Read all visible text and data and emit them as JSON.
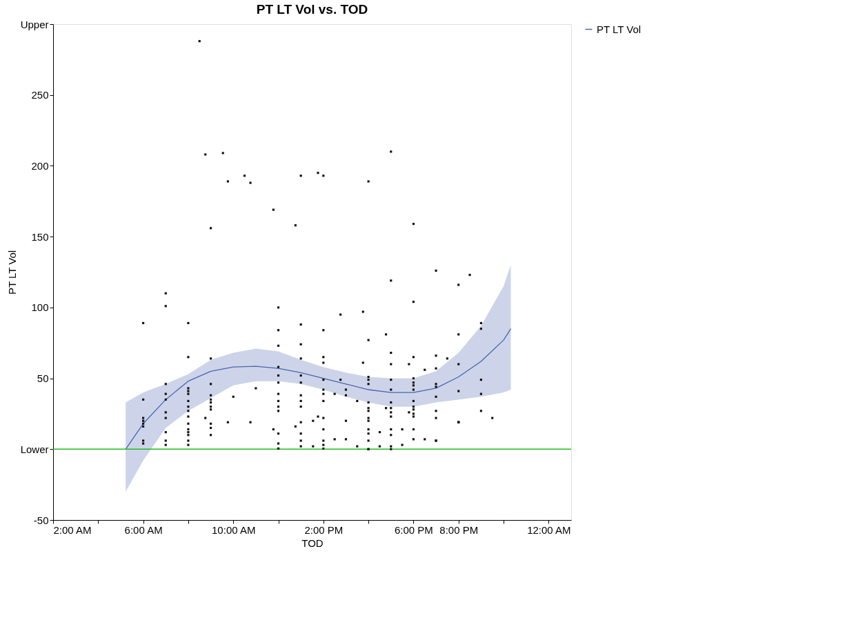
{
  "chart_data": {
    "type": "scatter",
    "title": "PT LT Vol vs. TOD",
    "xlabel": "TOD",
    "ylabel": "PT LT Vol",
    "xlim": [
      2,
      25
    ],
    "xticks": [
      {
        "value": 2,
        "label": "2:00 AM"
      },
      {
        "value": 4,
        "label": null
      },
      {
        "value": 6,
        "label": "6:00 AM"
      },
      {
        "value": 8,
        "label": null
      },
      {
        "value": 10,
        "label": "10:00 AM"
      },
      {
        "value": 12,
        "label": null
      },
      {
        "value": 14,
        "label": "2:00 PM"
      },
      {
        "value": 16,
        "label": null
      },
      {
        "value": 18,
        "label": "6:00 PM"
      },
      {
        "value": 20,
        "label": "8:00 PM"
      },
      {
        "value": 22,
        "label": null
      },
      {
        "value": 24,
        "label": "12:00 AM"
      }
    ],
    "ylim": [
      -50,
      300
    ],
    "yticks": [
      -50,
      {
        "value": 0,
        "label": "Lower"
      },
      50,
      100,
      150,
      200,
      250,
      {
        "value": 300,
        "label": "Upper"
      }
    ],
    "grid": false,
    "legend": "top right",
    "ref_lines": [
      {
        "axis": "y",
        "value": 0,
        "color": "#22bb22"
      }
    ],
    "series": [
      {
        "color": "#111111",
        "marker": "square",
        "x": [
          6,
          6,
          6,
          6,
          6,
          6,
          6,
          6,
          7,
          7,
          7,
          7,
          7,
          7,
          7,
          7,
          7,
          7,
          8,
          8,
          8,
          8,
          8,
          8,
          8,
          8,
          8,
          8,
          8,
          8,
          8,
          8,
          8,
          9,
          9,
          9,
          9,
          9,
          9,
          9,
          9,
          9,
          9,
          9,
          8.5,
          8.76,
          9.54,
          9.76,
          10.5,
          10.76,
          11.78,
          12.76,
          13,
          13.76,
          14,
          8.76,
          9.76,
          10,
          10.76,
          11,
          11.78,
          12.76,
          13.54,
          13.76,
          13.54,
          12,
          12,
          12,
          12,
          12,
          12,
          12,
          12,
          12,
          12,
          12,
          12,
          12,
          12,
          13,
          13,
          13,
          13,
          13,
          13,
          13,
          13,
          13,
          13,
          13,
          13,
          14,
          14,
          14,
          14,
          14,
          14,
          14,
          14,
          14,
          14,
          14,
          14,
          14.5,
          14.5,
          14.76,
          14.76,
          15,
          15,
          15,
          15,
          15.5,
          15.5,
          15.76,
          15.76,
          16,
          16,
          16,
          16,
          16,
          16,
          16,
          16,
          16,
          16,
          16,
          16,
          16,
          16,
          16,
          16.5,
          16.5,
          16.78,
          16.78,
          17,
          17,
          17,
          17,
          17,
          17,
          17,
          17,
          17,
          17,
          17,
          17,
          17,
          17,
          17.5,
          17.5,
          17.8,
          17.8,
          18,
          18,
          18,
          18,
          18,
          18,
          18,
          18,
          18,
          18,
          18,
          18,
          18,
          18,
          18.5,
          18.5,
          19,
          19,
          19,
          19,
          19,
          19,
          19,
          19,
          19,
          19,
          19.5,
          20,
          20,
          20,
          20,
          20,
          20,
          20,
          20.5,
          21,
          21,
          21,
          21,
          21,
          21.5
        ],
        "values": [
          89,
          35,
          22,
          20,
          18,
          16,
          6,
          4,
          110,
          101,
          46,
          39,
          35,
          26,
          22,
          12,
          6,
          3,
          89,
          65,
          43,
          41,
          39,
          34,
          30,
          27,
          23,
          18,
          14,
          12,
          10,
          6,
          3,
          156,
          64,
          46,
          38,
          35,
          33,
          30,
          28,
          18,
          15,
          10,
          288,
          208,
          209,
          189,
          193,
          188,
          169,
          158,
          193,
          195,
          193,
          22,
          19,
          37,
          19,
          43,
          14,
          16,
          20,
          23,
          2,
          100,
          84,
          73,
          58,
          52,
          47,
          39,
          34,
          30,
          27,
          11,
          4,
          0.4,
          0.4,
          88,
          74,
          64,
          52,
          47,
          38,
          34,
          30,
          19,
          11,
          6,
          2,
          84,
          65,
          61,
          49,
          42,
          39,
          34,
          22,
          14,
          6,
          3,
          0.4,
          39,
          7,
          95,
          49,
          42,
          38,
          20,
          7,
          34,
          2,
          97,
          61,
          189,
          77,
          51,
          49,
          46,
          33,
          29,
          27,
          22,
          20,
          14,
          11,
          6,
          0,
          0,
          12,
          2,
          81,
          29,
          210,
          119,
          68,
          60,
          49,
          42,
          33,
          29,
          26,
          23,
          14,
          10,
          2,
          0,
          14,
          3,
          60,
          26,
          159,
          104,
          65,
          50,
          47,
          45,
          42,
          34,
          30,
          28,
          25,
          23,
          14,
          7,
          56,
          7,
          126,
          66,
          57,
          46,
          44,
          37,
          27,
          22,
          6,
          6,
          64,
          116,
          81,
          60,
          41,
          19,
          19,
          19,
          123,
          89,
          85,
          49,
          39,
          27,
          22
        ]
      },
      {
        "type": "line",
        "name": "PT LT Vol",
        "color": "#4a64b0",
        "x": [
          5.22,
          6,
          7,
          8,
          9,
          10,
          11,
          12,
          13,
          14,
          15,
          16,
          17,
          18,
          19,
          20,
          21,
          22,
          22.32
        ],
        "values": [
          0,
          18,
          35,
          48,
          55,
          58,
          58.5,
          57,
          54,
          50,
          46,
          42,
          40,
          40,
          43,
          51,
          62,
          77,
          85
        ],
        "lower": [
          -30,
          -8,
          15,
          27,
          36,
          45,
          48,
          48,
          46,
          42,
          37,
          33,
          30,
          30,
          33,
          35,
          37,
          40,
          42
        ],
        "upper": [
          33,
          40,
          46,
          53,
          63,
          68,
          71,
          69,
          63,
          58,
          54,
          51,
          50,
          50,
          55,
          68,
          87,
          115,
          130
        ]
      }
    ]
  }
}
